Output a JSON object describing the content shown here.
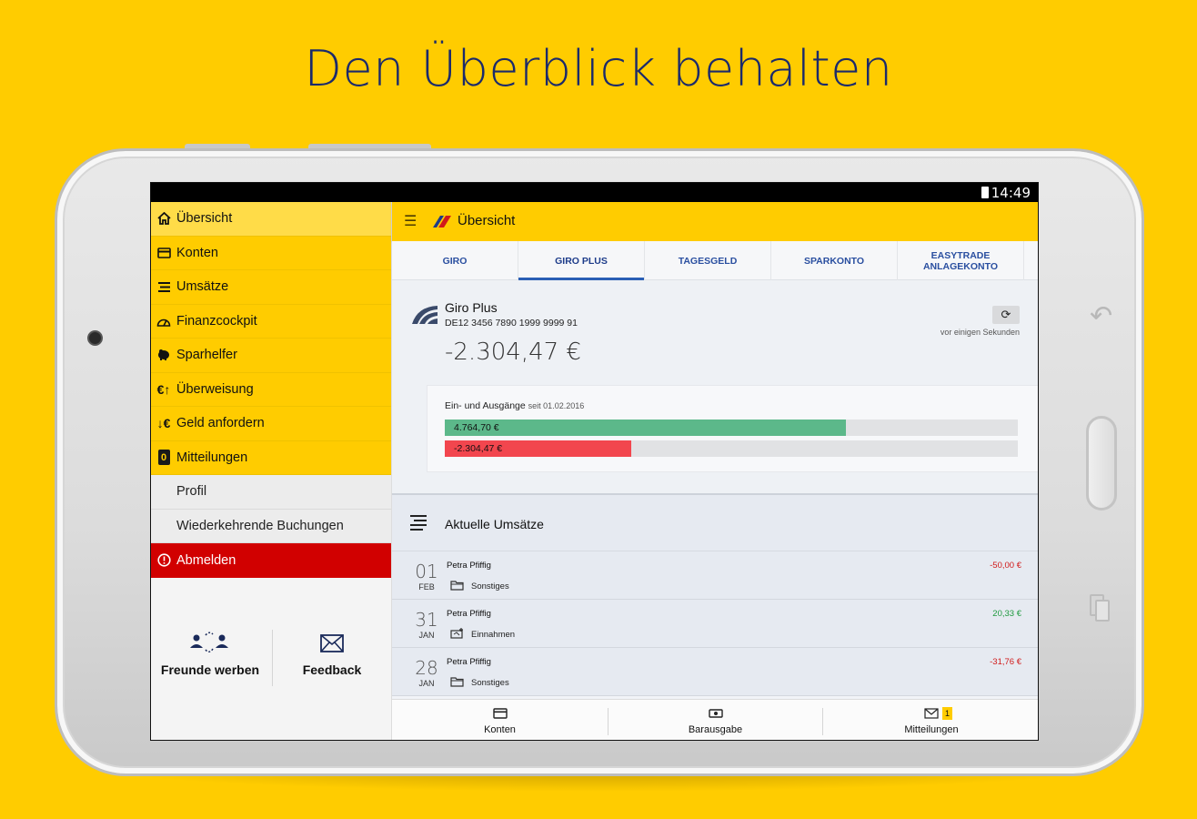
{
  "headline": "Den Überblick behalten",
  "statusbar": {
    "time": "14:49"
  },
  "drawer": {
    "items": [
      {
        "label": "Übersicht",
        "icon": "home-icon"
      },
      {
        "label": "Konten",
        "icon": "card-icon"
      },
      {
        "label": "Umsätze",
        "icon": "list-icon"
      },
      {
        "label": "Finanzcockpit",
        "icon": "gauge-icon"
      },
      {
        "label": "Sparhelfer",
        "icon": "piggy-bank-icon"
      },
      {
        "label": "Überweisung",
        "icon": "euro-transfer-icon"
      },
      {
        "label": "Geld anfordern",
        "icon": "euro-request-icon"
      },
      {
        "label": "Mitteilungen",
        "icon": "message-count-icon",
        "badge": "0"
      }
    ],
    "sub_items": [
      {
        "label": "Profil"
      },
      {
        "label": "Wiederkehrende Buchungen"
      }
    ],
    "logout": {
      "label": "Abmelden",
      "icon": "alert-icon"
    },
    "footer": {
      "refer": {
        "label": "Freunde werben",
        "icon": "refer-friends-icon"
      },
      "feedback": {
        "label": "Feedback",
        "icon": "envelope-icon"
      }
    }
  },
  "appbar": {
    "title": "Übersicht",
    "menu_icon": "menu-icon"
  },
  "tabs": [
    {
      "label": "GIRO"
    },
    {
      "label": "GIRO PLUS"
    },
    {
      "label": "TAGESGELD"
    },
    {
      "label": "SPARKONTO"
    },
    {
      "label": "EASYTRADE\nANLAGEKONTO"
    }
  ],
  "account": {
    "name": "Giro Plus",
    "iban": "DE12 3456 7890 1999 9999 91",
    "balance": "-2.304,47 €",
    "refresh_time": "vor einigen Sekunden",
    "flow": {
      "title": "Ein- und Ausgänge",
      "since": "seit 01.02.2016",
      "income": {
        "label": "4.764,70 €",
        "fraction": 0.7,
        "color": "#5CB88A"
      },
      "expense": {
        "label": "-2.304,47 €",
        "fraction": 0.325,
        "color": "#F2464E"
      }
    }
  },
  "transactions": {
    "title": "Aktuelle Umsätze",
    "rows": [
      {
        "day": "01",
        "month": "FEB",
        "name": "Petra Pfiffig",
        "category": "Sonstiges",
        "amount": "-50,00 €",
        "type": "neg"
      },
      {
        "day": "31",
        "month": "JAN",
        "name": "Petra Pfiffig",
        "category": "Einnahmen",
        "amount": "20,33 €",
        "type": "pos"
      },
      {
        "day": "28",
        "month": "JAN",
        "name": "Petra Pfiffig",
        "category": "Sonstiges",
        "amount": "-31,76 €",
        "type": "neg"
      }
    ]
  },
  "bottomnav": {
    "konten": "Konten",
    "barausgabe": "Barausgabe",
    "mitteilungen": "Mitteilungen",
    "badge": "1"
  }
}
